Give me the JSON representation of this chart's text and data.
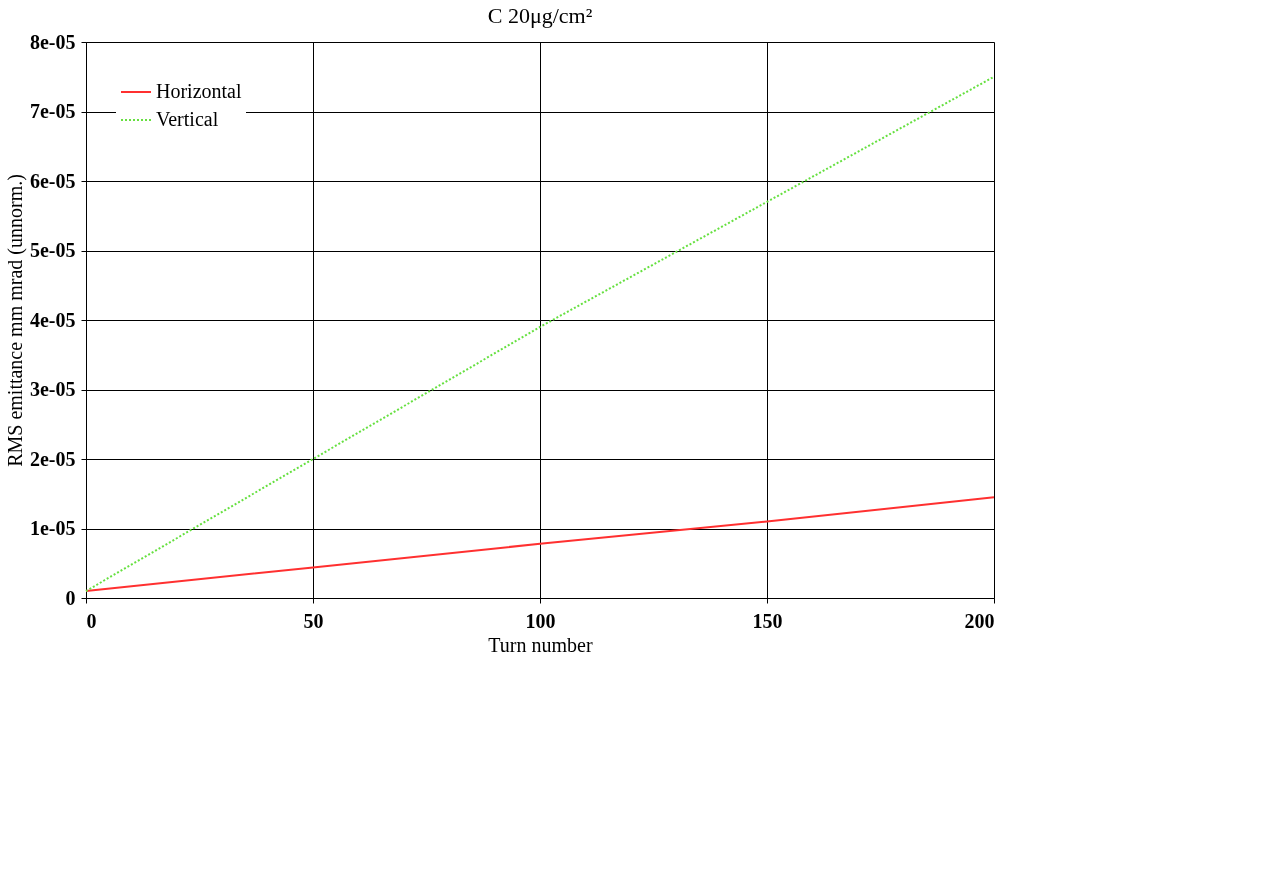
{
  "chart_data": {
    "type": "line",
    "title": "C 20μg/cm²",
    "xlabel": "Turn number",
    "ylabel": "RMS emittance mm mrad (unnorm.)",
    "x": [
      0,
      50,
      100,
      150,
      200
    ],
    "series": [
      {
        "name": "Horizontal",
        "color": "#ff3030",
        "line_style": "solid",
        "values": [
          1e-06,
          4.4e-06,
          7.8e-06,
          1.1e-05,
          1.45e-05
        ]
      },
      {
        "name": "Vertical",
        "color": "#66e040",
        "line_style": "dotted",
        "values": [
          1e-06,
          2e-05,
          3.9e-05,
          5.7e-05,
          7.5e-05
        ]
      }
    ],
    "xlim": [
      0,
      200
    ],
    "xticks": [
      0,
      50,
      100,
      150,
      200
    ],
    "ylim": [
      0,
      8e-05
    ],
    "yticks": [
      0,
      {
        "value": 1e-05,
        "label": "1e-05"
      },
      {
        "value": 2e-05,
        "label": "2e-05"
      },
      {
        "value": 3e-05,
        "label": "3e-05"
      },
      {
        "value": 4e-05,
        "label": "4e-05"
      },
      {
        "value": 5e-05,
        "label": "5e-05"
      },
      {
        "value": 6e-05,
        "label": "6e-05"
      },
      {
        "value": 7e-05,
        "label": "7e-05"
      },
      {
        "value": 8e-05,
        "label": "8e-05"
      }
    ],
    "grid": true,
    "legend": "top left",
    "marker": "none"
  }
}
